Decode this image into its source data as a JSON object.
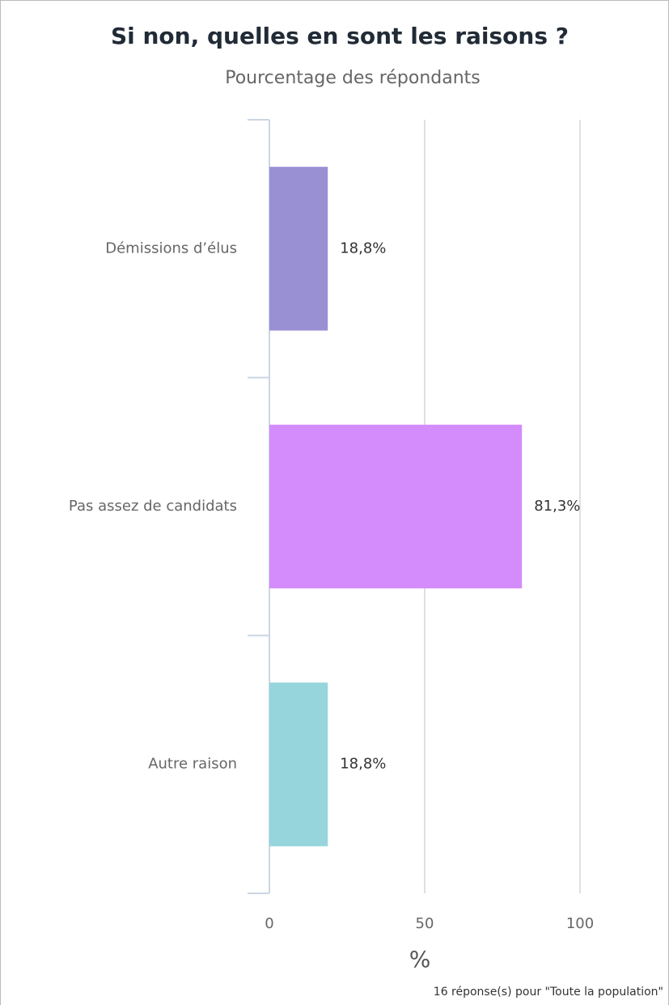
{
  "chart_data": {
    "type": "bar",
    "orientation": "horizontal",
    "title": "Si non, quelles en sont les raisons ?",
    "subtitle": "Pourcentage des répondants",
    "categories": [
      "Démissions d’élus",
      "Pas assez de candidats",
      "Autre raison"
    ],
    "values": [
      18.8,
      81.3,
      18.8
    ],
    "value_labels": [
      "18,8%",
      "81,3%",
      "18,8%"
    ],
    "colors": [
      "#9990d4",
      "#d48cfd",
      "#96d5dc"
    ],
    "xlim": [
      0,
      100
    ],
    "xticks": [
      0,
      50,
      100
    ],
    "grid": true,
    "xlabel": "%",
    "footnote": "16 réponse(s) pour \"Toute la population\""
  }
}
